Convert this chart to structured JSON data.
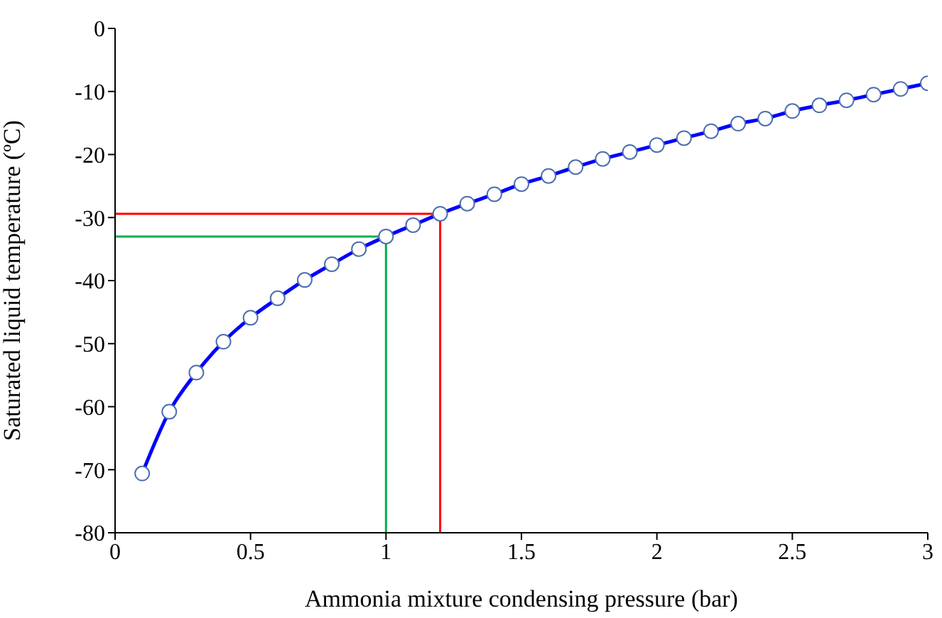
{
  "chart_data": {
    "type": "line",
    "xlabel": "Ammonia mixture condensing pressure (bar)",
    "ylabel": "Saturated liquid temperature (ºC)",
    "xlim": [
      0,
      3
    ],
    "xticks": [
      0,
      0.5,
      1,
      1.5,
      2,
      2.5,
      3
    ],
    "ylim": [
      -80,
      0
    ],
    "yticks": [
      -80,
      -70,
      -60,
      -50,
      -40,
      -30,
      -20,
      -10,
      0
    ],
    "grid": false,
    "legend": false,
    "marker": "circle",
    "line_style": "solid",
    "series": [
      {
        "type": "line",
        "color": "#0000ff",
        "x": [
          0.1,
          0.2,
          0.3,
          0.4,
          0.5,
          0.6,
          0.7,
          0.8,
          0.9,
          1.0,
          1.1,
          1.2,
          1.3,
          1.4,
          1.5,
          1.6,
          1.7,
          1.8,
          1.9,
          2.0,
          2.1,
          2.2,
          2.3,
          2.4,
          2.5,
          2.6,
          2.7,
          2.8,
          2.9,
          3.0
        ],
        "values": [
          -70.6,
          -60.8,
          -54.6,
          -49.7,
          -45.9,
          -42.8,
          -39.9,
          -37.4,
          -35.0,
          -33.0,
          -31.2,
          -29.4,
          -27.8,
          -26.3,
          -24.7,
          -23.4,
          -22.0,
          -20.7,
          -19.6,
          -18.5,
          -17.4,
          -16.3,
          -15.1,
          -14.3,
          -13.1,
          -12.2,
          -11.4,
          -10.5,
          -9.6,
          -8.7
        ]
      },
      {
        "type": "line",
        "color": "#ff0000",
        "marker": "none",
        "x": [
          0,
          1.2,
          1.2
        ],
        "values": [
          -29.4,
          -29.4,
          -80
        ]
      },
      {
        "type": "line",
        "color": "#00b050",
        "marker": "none",
        "x": [
          0,
          1.0,
          1.0
        ],
        "values": [
          -33.0,
          -33.0,
          -80
        ]
      }
    ]
  }
}
